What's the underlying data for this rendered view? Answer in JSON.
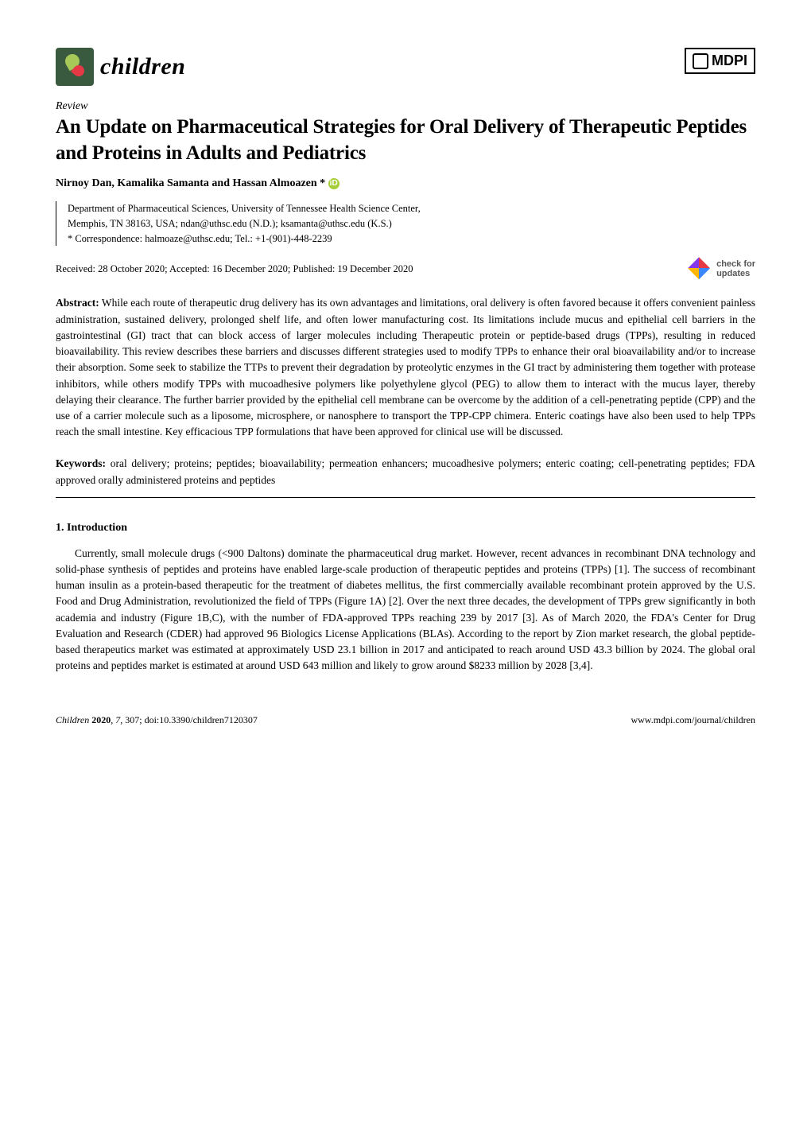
{
  "journal": {
    "name": "children"
  },
  "publisher": {
    "name": "MDPI"
  },
  "article_type": "Review",
  "title": "An Update on Pharmaceutical Strategies for Oral Delivery of Therapeutic Peptides and Proteins in Adults and Pediatrics",
  "authors_line": "Nirnoy Dan, Kamalika Samanta and Hassan Almoazen *",
  "orcid_label": "iD",
  "affiliation": {
    "dept": "Department of Pharmaceutical Sciences, University of Tennessee Health Science Center,",
    "address": "Memphis, TN 38163, USA; ndan@uthsc.edu (N.D.); ksamanta@uthsc.edu (K.S.)",
    "correspondence": "* Correspondence: halmoaze@uthsc.edu; Tel.: +1-(901)-448-2239"
  },
  "dates": "Received: 28 October 2020; Accepted: 16 December 2020; Published: 19 December 2020",
  "check_updates": {
    "line1": "check for",
    "line2": "updates"
  },
  "abstract": {
    "label": "Abstract:",
    "text": "While each route of therapeutic drug delivery has its own advantages and limitations, oral delivery is often favored because it offers convenient painless administration, sustained delivery, prolonged shelf life, and often lower manufacturing cost. Its limitations include mucus and epithelial cell barriers in the gastrointestinal (GI) tract that can block access of larger molecules including Therapeutic protein or peptide-based drugs (TPPs), resulting in reduced bioavailability. This review describes these barriers and discusses different strategies used to modify TPPs to enhance their oral bioavailability and/or to increase their absorption. Some seek to stabilize the TTPs to prevent their degradation by proteolytic enzymes in the GI tract by administering them together with protease inhibitors, while others modify TPPs with mucoadhesive polymers like polyethylene glycol (PEG) to allow them to interact with the mucus layer, thereby delaying their clearance. The further barrier provided by the epithelial cell membrane can be overcome by the addition of a cell-penetrating peptide (CPP) and the use of a carrier molecule such as a liposome, microsphere, or nanosphere to transport the TPP-CPP chimera. Enteric coatings have also been used to help TPPs reach the small intestine. Key efficacious TPP formulations that have been approved for clinical use will be discussed."
  },
  "keywords": {
    "label": "Keywords:",
    "text": "oral delivery; proteins; peptides; bioavailability; permeation enhancers; mucoadhesive polymers; enteric coating; cell-penetrating peptides; FDA approved orally administered proteins and peptides"
  },
  "section1": {
    "heading": "1. Introduction",
    "body": "Currently, small molecule drugs (<900 Daltons) dominate the pharmaceutical drug market. However, recent advances in recombinant DNA technology and solid-phase synthesis of peptides and proteins have enabled large-scale production of therapeutic peptides and proteins (TPPs) [1]. The success of recombinant human insulin as a protein-based therapeutic for the treatment of diabetes mellitus, the first commercially available recombinant protein approved by the U.S. Food and Drug Administration, revolutionized the field of TPPs (Figure 1A) [2]. Over the next three decades, the development of TPPs grew significantly in both academia and industry (Figure 1B,C), with the number of FDA-approved TPPs reaching 239 by 2017 [3]. As of March 2020, the FDA's Center for Drug Evaluation and Research (CDER) had approved 96 Biologics License Applications (BLAs). According to the report by Zion market research, the global peptide-based therapeutics market was estimated at approximately USD 23.1 billion in 2017 and anticipated to reach around USD 43.3 billion by 2024. The global oral proteins and peptides market is estimated at around USD 643 million and likely to grow around $8233 million by 2028 [3,4]."
  },
  "footer": {
    "left": "Children 2020, 7, 307; doi:10.3390/children7120307",
    "right": "www.mdpi.com/journal/children"
  },
  "colors": {
    "logo_bg": "#3a5a40",
    "orcid_bg": "#a6ce39",
    "text": "#000000",
    "background": "#ffffff"
  },
  "typography": {
    "body_fontsize_pt": 10,
    "title_fontsize_pt": 18,
    "journal_fontsize_pt": 22
  }
}
